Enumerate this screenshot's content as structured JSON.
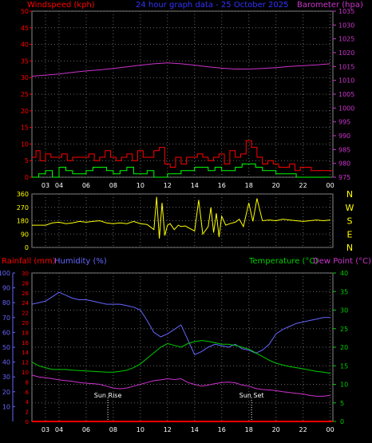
{
  "header": {
    "left_label": "Windspeed (kph)",
    "center_label": "24 hour graph data - 25 October 2025",
    "right_label": "Barometer (hpa)"
  },
  "colors": {
    "background": "#000000",
    "grid": "#666666",
    "windspeed": "#ff0000",
    "gust": "#ff0000",
    "avg_wind": "#00ff00",
    "white_wind": "#ffffff",
    "barometer": "#cc33cc",
    "direction": "#ffff00",
    "rainfall": "#ff0000",
    "humidity": "#6666ff",
    "temperature": "#00cc00",
    "dewpoint": "#cc33cc",
    "header_blue": "#3333ff"
  },
  "chart_data": [
    {
      "type": "line",
      "name": "wind-barometer",
      "x_tick_labels": [
        "03",
        "04",
        "06",
        "08",
        "10",
        "12",
        "14",
        "16",
        "18",
        "20",
        "22",
        "00"
      ],
      "x_tick_hours": [
        3,
        4,
        6,
        8,
        10,
        12,
        14,
        16,
        18,
        20,
        22,
        24
      ],
      "x_range_hours": [
        2,
        24.2
      ],
      "y_left": {
        "label": "Windspeed (kph)",
        "ticks": [
          0,
          5,
          10,
          15,
          20,
          25,
          30,
          35,
          40,
          45,
          50
        ],
        "ylim": [
          0,
          50
        ]
      },
      "y_right": {
        "label": "Barometer (hpa)",
        "ticks": [
          975,
          980,
          985,
          990,
          995,
          1000,
          1005,
          1010,
          1015,
          1020,
          1025,
          1030,
          1035
        ],
        "ylim": [
          975,
          1035
        ]
      },
      "grid": true,
      "series": [
        {
          "name": "Barometer",
          "axis": "right",
          "x": [
            2,
            3,
            4,
            5,
            6,
            7,
            8,
            9,
            10,
            11,
            12,
            13,
            14,
            15,
            16,
            17,
            18,
            19,
            20,
            21,
            22,
            23,
            24
          ],
          "y": [
            1011.5,
            1011.9,
            1012.3,
            1012.9,
            1013.4,
            1013.8,
            1014.3,
            1014.9,
            1015.5,
            1016.0,
            1016.3,
            1016.0,
            1015.5,
            1014.9,
            1014.4,
            1014.1,
            1014.1,
            1014.3,
            1014.6,
            1015.0,
            1015.3,
            1015.6,
            1016.0
          ]
        },
        {
          "name": "Gust",
          "axis": "left",
          "x": [
            2,
            2.3,
            2.6,
            3.0,
            3.4,
            3.8,
            4.2,
            4.6,
            5.0,
            5.4,
            5.8,
            6.2,
            6.6,
            7.0,
            7.4,
            7.8,
            8.2,
            8.6,
            9.0,
            9.4,
            9.8,
            10.2,
            10.6,
            11.0,
            11.4,
            11.8,
            12.2,
            12.6,
            13.0,
            13.4,
            13.8,
            14.2,
            14.6,
            15.0,
            15.4,
            15.8,
            16.2,
            16.6,
            17.0,
            17.4,
            17.8,
            18.2,
            18.6,
            19.0,
            19.4,
            19.8,
            20.2,
            20.6,
            21.0,
            21.4,
            21.8,
            22.2,
            22.6,
            23.0,
            23.4,
            23.8,
            24.2
          ],
          "y": [
            6,
            8,
            5,
            7,
            6,
            6,
            7,
            5,
            6,
            6,
            6,
            7,
            5,
            6,
            8,
            6,
            5,
            6,
            7,
            5,
            8,
            6,
            6,
            8,
            9,
            4,
            3,
            6,
            4,
            6,
            6,
            7,
            6,
            5,
            6,
            7,
            4,
            8,
            6,
            7,
            11,
            9,
            6,
            4,
            5,
            4,
            3,
            3,
            4,
            2,
            3,
            3,
            2,
            2,
            2,
            2,
            2
          ]
        },
        {
          "name": "Average wind",
          "axis": "left",
          "x": [
            2,
            2.5,
            3,
            3.5,
            4,
            4.5,
            5,
            5.5,
            6,
            6.5,
            7,
            7.5,
            8,
            8.5,
            9,
            9.5,
            10,
            10.5,
            11,
            11.5,
            12,
            12.5,
            13,
            13.5,
            14,
            14.5,
            15,
            15.5,
            16,
            16.5,
            17,
            17.5,
            18,
            18.5,
            19,
            19.5,
            20,
            20.5,
            21,
            21.5,
            22,
            22.5,
            23,
            23.5,
            24
          ],
          "y": [
            0,
            1,
            2,
            0,
            3,
            2,
            1,
            1,
            2,
            3,
            3,
            2,
            1,
            2,
            3,
            1,
            1,
            2,
            0,
            0,
            1,
            1,
            2,
            2,
            3,
            3,
            2,
            3,
            2,
            2,
            3,
            4,
            4,
            3,
            2,
            2,
            1,
            1,
            1,
            0,
            0,
            0,
            0,
            0,
            0
          ]
        }
      ]
    },
    {
      "type": "line",
      "name": "wind-direction",
      "x_range_hours": [
        2,
        24.2
      ],
      "y_left": {
        "ticks": [
          0,
          90,
          180,
          270,
          360
        ],
        "ylim": [
          0,
          360
        ]
      },
      "y_right_labels": [
        "N",
        "W",
        "S",
        "E",
        "N"
      ],
      "grid": true,
      "series": [
        {
          "name": "Wind direction",
          "x": [
            2,
            2.5,
            3,
            3.5,
            4,
            4.5,
            5,
            5.5,
            6,
            6.5,
            7,
            7.5,
            8,
            8.5,
            9,
            9.5,
            10,
            10.5,
            11,
            11.2,
            11.4,
            11.6,
            11.8,
            12,
            12.2,
            12.5,
            12.8,
            13,
            13.3,
            13.6,
            14,
            14.3,
            14.6,
            15,
            15.2,
            15.4,
            15.6,
            15.8,
            16,
            16.3,
            16.6,
            17,
            17.3,
            17.6,
            18,
            18.3,
            18.6,
            19,
            19.5,
            20,
            20.5,
            21,
            21.5,
            22,
            22.5,
            23,
            23.5,
            24
          ],
          "y": [
            150,
            150,
            150,
            165,
            170,
            160,
            165,
            175,
            170,
            175,
            180,
            165,
            160,
            165,
            160,
            175,
            160,
            155,
            120,
            340,
            60,
            300,
            80,
            150,
            160,
            120,
            150,
            140,
            145,
            130,
            110,
            320,
            90,
            140,
            270,
            100,
            230,
            70,
            210,
            150,
            160,
            170,
            190,
            140,
            300,
            175,
            330,
            180,
            185,
            180,
            190,
            185,
            180,
            175,
            180,
            185,
            180,
            185
          ]
        }
      ]
    },
    {
      "type": "line",
      "name": "rain-humidity-temperature",
      "x_tick_labels": [
        "03",
        "04",
        "06",
        "08",
        "10",
        "12",
        "14",
        "16",
        "18",
        "20",
        "22",
        "00"
      ],
      "x_tick_hours": [
        3,
        4,
        6,
        8,
        10,
        12,
        14,
        16,
        18,
        20,
        22,
        24
      ],
      "x_range_hours": [
        2,
        24.2
      ],
      "left_labels": [
        "Rainfall (mm)",
        "Humidity (%)"
      ],
      "right_labels": [
        "Temperature (°C)",
        "Dew Point (°C)"
      ],
      "y_rain": {
        "ticks": [
          0,
          2,
          4,
          6,
          8,
          10,
          12,
          14,
          16,
          18,
          20,
          22,
          24,
          26,
          28,
          30
        ],
        "ylim": [
          0,
          30
        ]
      },
      "y_humidity": {
        "ticks": [
          10,
          20,
          30,
          40,
          50,
          60,
          70,
          80,
          90,
          100
        ],
        "ylim": [
          0,
          100
        ]
      },
      "y_temperature": {
        "ticks": [
          0,
          5,
          10,
          15,
          20,
          25,
          30,
          35,
          40
        ],
        "ylim": [
          0,
          40
        ]
      },
      "annotations": [
        {
          "text": "Sun Rise",
          "x": 7.6
        },
        {
          "text": "Sun Set",
          "x": 18.2
        }
      ],
      "grid": true,
      "series": [
        {
          "name": "Humidity",
          "axis": "humidity",
          "x": [
            2,
            2.5,
            3,
            3.5,
            4,
            4.5,
            5,
            5.5,
            6,
            6.5,
            7,
            7.5,
            8,
            8.5,
            9,
            9.5,
            10,
            10.5,
            11,
            11.5,
            12,
            12.5,
            13,
            13.5,
            14,
            14.5,
            15,
            15.5,
            16,
            16.5,
            17,
            17.5,
            18,
            18.5,
            19,
            19.5,
            20,
            20.5,
            21,
            21.5,
            22,
            22.5,
            23,
            23.5,
            24
          ],
          "y": [
            79,
            80,
            81,
            84,
            87,
            85,
            83,
            82,
            82,
            81,
            80,
            79,
            79,
            79,
            78,
            77,
            75,
            68,
            60,
            57,
            59,
            62,
            65,
            55,
            45,
            47,
            50,
            52,
            51,
            50,
            52,
            49,
            48,
            46,
            48,
            52,
            59,
            62,
            64,
            66,
            67,
            68,
            69,
            70,
            70
          ]
        },
        {
          "name": "Temperature",
          "axis": "temperature",
          "x": [
            2,
            2.5,
            3,
            3.5,
            4,
            4.5,
            5,
            5.5,
            6,
            6.5,
            7,
            7.5,
            8,
            8.5,
            9,
            9.5,
            10,
            10.5,
            11,
            11.5,
            12,
            12.5,
            13,
            13.5,
            14,
            14.5,
            15,
            15.5,
            16,
            16.5,
            17,
            17.5,
            18,
            18.5,
            19,
            19.5,
            20,
            20.5,
            21,
            21.5,
            22,
            22.5,
            23,
            23.5,
            24
          ],
          "y": [
            16,
            15,
            14.5,
            14,
            14,
            14,
            13.8,
            13.7,
            13.6,
            13.5,
            13.4,
            13.3,
            13.3,
            13.5,
            13.8,
            14.5,
            15.5,
            17,
            18.5,
            20,
            21,
            20.5,
            20,
            21,
            21.5,
            21.8,
            21.6,
            21.2,
            20.8,
            20.8,
            20.5,
            20.0,
            19.5,
            18.5,
            17.5,
            16.5,
            15.7,
            15.2,
            14.8,
            14.5,
            14.2,
            13.8,
            13.5,
            13.3,
            13.0
          ]
        },
        {
          "name": "Dew Point",
          "axis": "temperature",
          "x": [
            2,
            2.5,
            3,
            3.5,
            4,
            4.5,
            5,
            5.5,
            6,
            6.5,
            7,
            7.5,
            8,
            8.5,
            9,
            9.5,
            10,
            10.5,
            11,
            11.5,
            12,
            12.5,
            13,
            13.5,
            14,
            14.5,
            15,
            15.5,
            16,
            16.5,
            17,
            17.5,
            18,
            18.5,
            19,
            19.5,
            20,
            20.5,
            21,
            21.5,
            22,
            22.5,
            23,
            23.5,
            24
          ],
          "y": [
            12.5,
            12,
            11.8,
            11.5,
            11.2,
            11,
            10.8,
            10.5,
            10.3,
            10.2,
            10,
            9.5,
            9,
            8.8,
            9,
            9.5,
            10,
            10.5,
            11,
            11.2,
            11.5,
            11.3,
            11.5,
            10.5,
            10,
            9.5,
            9.8,
            10.2,
            10.5,
            10.6,
            10.4,
            9.8,
            9.5,
            8.9,
            8.6,
            8.5,
            8.3,
            8.0,
            7.8,
            7.6,
            7.4,
            7.0,
            6.8,
            6.8,
            7.0
          ]
        },
        {
          "name": "Rainfall",
          "axis": "rain",
          "x": [
            2,
            24.2
          ],
          "y": [
            0,
            0
          ]
        }
      ]
    }
  ]
}
